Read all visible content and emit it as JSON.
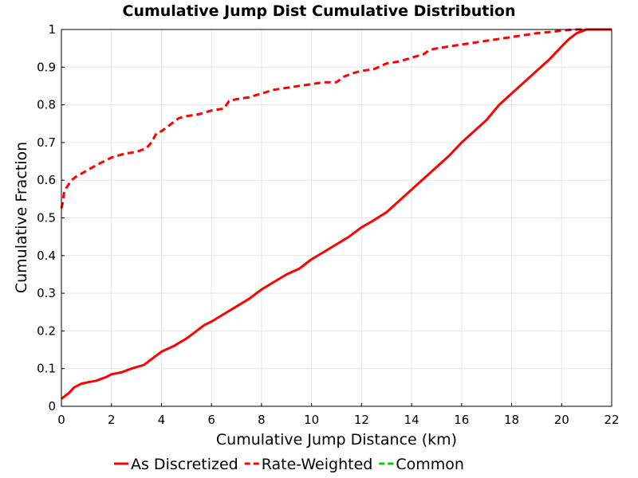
{
  "chart_data": {
    "type": "line",
    "title": "Cumulative Jump Dist Cumulative Distribution",
    "xlabel": "Cumulative Jump Distance (km)",
    "ylabel": "Cumulative Fraction",
    "xlim": [
      0,
      22
    ],
    "ylim": [
      0,
      1
    ],
    "xticks": [
      "0",
      "2",
      "4",
      "6",
      "8",
      "10",
      "12",
      "14",
      "16",
      "18",
      "20",
      "22"
    ],
    "yticks": [
      "0",
      "0.1",
      "0.2",
      "0.3",
      "0.4",
      "0.5",
      "0.6",
      "0.7",
      "0.8",
      "0.9",
      "1"
    ],
    "grid": true,
    "legend_position": "bottom",
    "series": [
      {
        "name": "As Discretized",
        "color": "#ff0000",
        "style": "solid",
        "x": [
          0,
          0.3,
          0.5,
          0.8,
          1.0,
          1.4,
          1.8,
          2.0,
          2.4,
          2.8,
          3.3,
          3.6,
          4.0,
          4.5,
          5.0,
          5.4,
          5.7,
          6.0,
          6.5,
          7.0,
          7.5,
          8.0,
          8.5,
          9.0,
          9.5,
          10.0,
          10.5,
          11.0,
          11.5,
          12.0,
          12.4,
          13.0,
          13.5,
          14.0,
          14.5,
          15.0,
          15.5,
          16.0,
          16.5,
          17.0,
          17.5,
          18.0,
          18.5,
          19.0,
          19.5,
          20.0,
          20.3,
          20.6,
          21.0,
          21.5,
          22.0
        ],
        "y": [
          0.02,
          0.035,
          0.05,
          0.06,
          0.063,
          0.068,
          0.078,
          0.085,
          0.09,
          0.1,
          0.11,
          0.125,
          0.145,
          0.16,
          0.18,
          0.2,
          0.215,
          0.225,
          0.245,
          0.265,
          0.285,
          0.31,
          0.33,
          0.35,
          0.365,
          0.39,
          0.41,
          0.43,
          0.45,
          0.475,
          0.49,
          0.515,
          0.545,
          0.575,
          0.605,
          0.635,
          0.665,
          0.7,
          0.73,
          0.76,
          0.8,
          0.83,
          0.86,
          0.89,
          0.92,
          0.955,
          0.975,
          0.99,
          1.0,
          1.0,
          1.0
        ]
      },
      {
        "name": "Rate-Weighted",
        "color": "#ff0000",
        "style": "dashed",
        "x": [
          0,
          0.05,
          0.1,
          0.2,
          0.4,
          0.6,
          1.0,
          1.4,
          2.0,
          2.5,
          3.0,
          3.4,
          3.6,
          3.8,
          4.0,
          4.4,
          4.7,
          5.0,
          5.5,
          6.0,
          6.5,
          6.7,
          7.0,
          7.5,
          8.0,
          8.5,
          9.0,
          9.5,
          10.0,
          10.5,
          11.0,
          11.3,
          11.7,
          12.0,
          12.5,
          13.0,
          13.5,
          14.0,
          14.5,
          14.7,
          15.0,
          15.5,
          16.0,
          16.5,
          17.0,
          17.5,
          18.0,
          18.5,
          19.0,
          19.5,
          20.0,
          20.5,
          21.0,
          22.0
        ],
        "y": [
          0.525,
          0.54,
          0.565,
          0.58,
          0.6,
          0.61,
          0.625,
          0.64,
          0.66,
          0.67,
          0.675,
          0.685,
          0.7,
          0.725,
          0.73,
          0.75,
          0.765,
          0.77,
          0.775,
          0.785,
          0.79,
          0.81,
          0.815,
          0.82,
          0.83,
          0.84,
          0.845,
          0.85,
          0.855,
          0.86,
          0.86,
          0.875,
          0.885,
          0.89,
          0.895,
          0.91,
          0.915,
          0.925,
          0.935,
          0.945,
          0.95,
          0.955,
          0.96,
          0.965,
          0.97,
          0.975,
          0.98,
          0.985,
          0.99,
          0.993,
          0.997,
          1.0,
          1.0,
          1.0
        ]
      }
    ],
    "legend": [
      {
        "label": "As Discretized",
        "color": "#ff0000",
        "style": "solid"
      },
      {
        "label": "Rate-Weighted",
        "color": "#ff0000",
        "style": "dashed"
      },
      {
        "label": "Common",
        "color": "#00cc00",
        "style": "dashed"
      }
    ]
  }
}
